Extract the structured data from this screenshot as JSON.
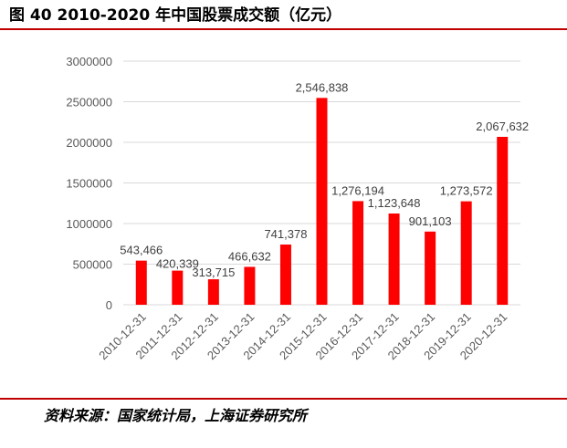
{
  "title": "图 40 2010-2020 年中国股票成交额（亿元）",
  "source": "资料来源：国家统计局，上海证券研究所",
  "colors": {
    "bar": "#ff0000",
    "rule": "#c00000",
    "grid": "#d9d9d9"
  },
  "chart_data": {
    "type": "bar",
    "title": "图 40 2010-2020 年中国股票成交额（亿元）",
    "xlabel": "",
    "ylabel": "",
    "categories": [
      "2010-12-31",
      "2011-12-31",
      "2012-12-31",
      "2013-12-31",
      "2014-12-31",
      "2015-12-31",
      "2016-12-31",
      "2017-12-31",
      "2018-12-31",
      "2019-12-31",
      "2020-12-31"
    ],
    "values": [
      543466,
      420339,
      313715,
      466632,
      741378,
      2546838,
      1276194,
      1123648,
      901103,
      1273572,
      2067632
    ],
    "value_labels": [
      "543,466",
      "420,339",
      "313,715",
      "466,632",
      "741,378",
      "2,546,838",
      "1,276,194",
      "1,123,648",
      "901,103",
      "1,273,572",
      "2,067,632"
    ],
    "ylim": [
      0,
      3000000
    ],
    "yticks": [
      0,
      500000,
      1000000,
      1500000,
      2000000,
      2500000,
      3000000
    ],
    "ytick_labels": [
      "0",
      "500000",
      "1000000",
      "1500000",
      "2000000",
      "2500000",
      "3000000"
    ],
    "grid": true,
    "legend": "none"
  }
}
